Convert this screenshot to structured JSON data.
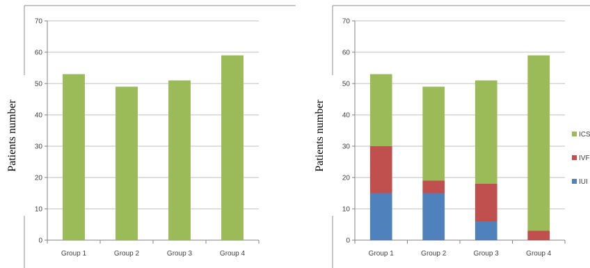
{
  "colors": {
    "ICSI": "#9bbb59",
    "IVF": "#c0504d",
    "IUI": "#4f81bd",
    "grid": "#bfbfbf",
    "axis": "#808080",
    "frame": "#8c8c8c"
  },
  "chart_data": [
    {
      "type": "bar",
      "ylabel": "Patients number",
      "ylim": [
        0,
        70
      ],
      "yticks": [
        0,
        10,
        20,
        30,
        40,
        50,
        60,
        70
      ],
      "categories": [
        "Group 1",
        "Group 2",
        "Group 3",
        "Group 4"
      ],
      "series": [
        {
          "values": [
            53,
            49,
            51,
            59
          ],
          "color": "#9bbb59"
        }
      ],
      "grid": true
    },
    {
      "type": "bar",
      "stacked": true,
      "ylabel": "Patients number",
      "ylim": [
        0,
        70
      ],
      "yticks": [
        0,
        10,
        20,
        30,
        40,
        50,
        60,
        70
      ],
      "categories": [
        "Group 1",
        "Group 2",
        "Group 3",
        "Group 4"
      ],
      "series": [
        {
          "name": "IUI",
          "values": [
            15,
            15,
            6,
            0
          ],
          "color": "#4f81bd"
        },
        {
          "name": "IVF",
          "values": [
            15,
            4,
            12,
            3
          ],
          "color": "#c0504d"
        },
        {
          "name": "ICSI",
          "values": [
            23,
            30,
            33,
            56
          ],
          "color": "#9bbb59"
        }
      ],
      "legend": {
        "position": "right",
        "order": [
          "ICSI",
          "IVF",
          "IUI"
        ]
      },
      "grid": true
    }
  ]
}
